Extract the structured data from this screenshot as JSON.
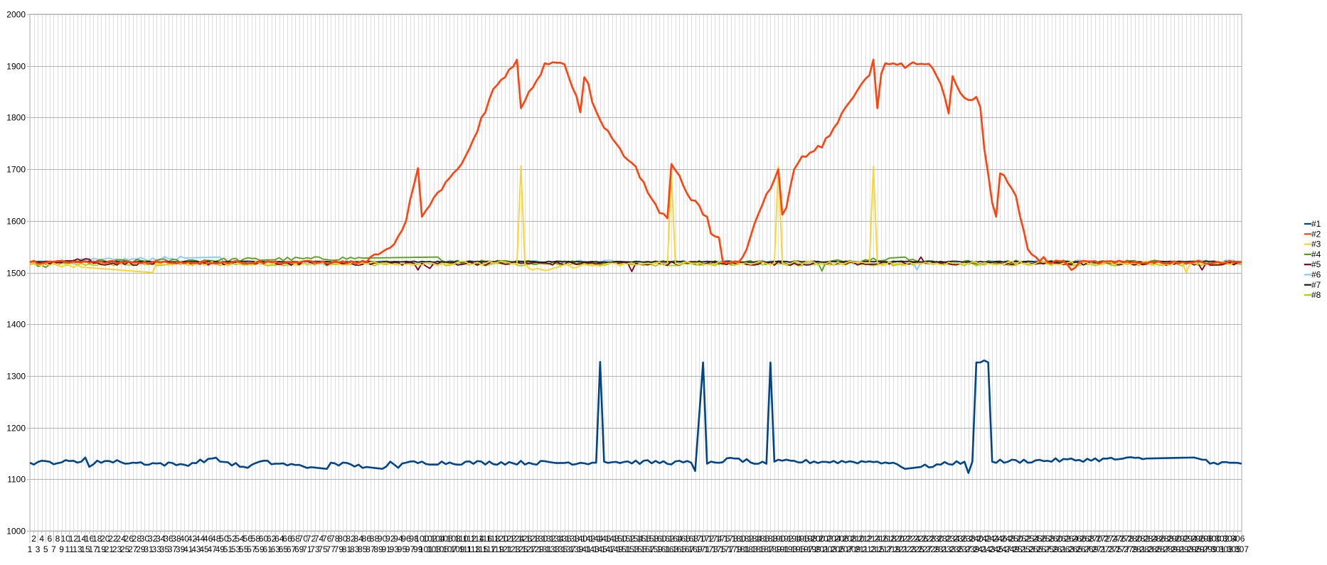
{
  "chart_data": {
    "type": "line",
    "title": "",
    "xlabel": "",
    "ylabel": "",
    "x_range": [
      1,
      307
    ],
    "ylim": [
      1000,
      2000
    ],
    "y_ticks": [
      "1000",
      "1100",
      "1200",
      "1300",
      "1400",
      "1500",
      "1600",
      "1700",
      "1800",
      "1900",
      "2000"
    ],
    "grid": true,
    "legend": "right",
    "series": [
      {
        "name": "#1",
        "color": "#004586",
        "baseline": 1132,
        "noise": 4,
        "points": [
          [
            1,
            1132
          ],
          [
            14,
            1134
          ],
          [
            15,
            1142
          ],
          [
            16,
            1124
          ],
          [
            18,
            1136
          ],
          [
            24,
            1133
          ],
          [
            40,
            1128
          ],
          [
            47,
            1140
          ],
          [
            56,
            1122
          ],
          [
            59,
            1134
          ],
          [
            76,
            1120
          ],
          [
            77,
            1132
          ],
          [
            90,
            1120
          ],
          [
            92,
            1134
          ],
          [
            94,
            1122
          ],
          [
            96,
            1132
          ],
          [
            143,
            1132
          ],
          [
            144,
            1132
          ],
          [
            145,
            1327
          ],
          [
            146,
            1134
          ],
          [
            168,
            1132
          ],
          [
            169,
            1116
          ],
          [
            171,
            1326
          ],
          [
            172,
            1130
          ],
          [
            179,
            1140
          ],
          [
            185,
            1130
          ],
          [
            187,
            1130
          ],
          [
            188,
            1326
          ],
          [
            189,
            1134
          ],
          [
            215,
            1134
          ],
          [
            219,
            1132
          ],
          [
            222,
            1120
          ],
          [
            237,
            1134
          ],
          [
            238,
            1112
          ],
          [
            239,
            1134
          ],
          [
            240,
            1326
          ],
          [
            241,
            1326
          ],
          [
            242,
            1330
          ],
          [
            243,
            1326
          ],
          [
            244,
            1134
          ],
          [
            295,
            1142
          ],
          [
            300,
            1132
          ],
          [
            307,
            1130
          ]
        ]
      },
      {
        "name": "#2",
        "color": "#ff420e",
        "baseline": 1520,
        "noise": 3,
        "points": [
          [
            1,
            1520
          ],
          [
            86,
            1520
          ],
          [
            87,
            1530
          ],
          [
            88,
            1535
          ],
          [
            89,
            1535
          ],
          [
            90,
            1540
          ],
          [
            91,
            1545
          ],
          [
            92,
            1548
          ],
          [
            93,
            1555
          ],
          [
            94,
            1570
          ],
          [
            95,
            1582
          ],
          [
            96,
            1600
          ],
          [
            97,
            1640
          ],
          [
            98,
            1670
          ],
          [
            99,
            1702
          ],
          [
            100,
            1608
          ],
          [
            101,
            1620
          ],
          [
            102,
            1630
          ],
          [
            103,
            1645
          ],
          [
            104,
            1655
          ],
          [
            105,
            1660
          ],
          [
            106,
            1675
          ],
          [
            107,
            1683
          ],
          [
            108,
            1693
          ],
          [
            109,
            1700
          ],
          [
            110,
            1710
          ],
          [
            111,
            1725
          ],
          [
            112,
            1740
          ],
          [
            113,
            1758
          ],
          [
            114,
            1773
          ],
          [
            115,
            1800
          ],
          [
            116,
            1810
          ],
          [
            117,
            1835
          ],
          [
            118,
            1855
          ],
          [
            119,
            1863
          ],
          [
            120,
            1873
          ],
          [
            121,
            1878
          ],
          [
            122,
            1893
          ],
          [
            123,
            1898
          ],
          [
            124,
            1912
          ],
          [
            125,
            1818
          ],
          [
            126,
            1832
          ],
          [
            127,
            1850
          ],
          [
            128,
            1858
          ],
          [
            129,
            1872
          ],
          [
            130,
            1883
          ],
          [
            131,
            1905
          ],
          [
            132,
            1903
          ],
          [
            133,
            1907
          ],
          [
            134,
            1906
          ],
          [
            135,
            1906
          ],
          [
            136,
            1903
          ],
          [
            137,
            1880
          ],
          [
            138,
            1858
          ],
          [
            139,
            1842
          ],
          [
            140,
            1810
          ],
          [
            141,
            1878
          ],
          [
            142,
            1866
          ],
          [
            143,
            1830
          ],
          [
            144,
            1812
          ],
          [
            145,
            1795
          ],
          [
            146,
            1780
          ],
          [
            147,
            1774
          ],
          [
            148,
            1760
          ],
          [
            149,
            1750
          ],
          [
            150,
            1740
          ],
          [
            151,
            1725
          ],
          [
            152,
            1718
          ],
          [
            153,
            1712
          ],
          [
            154,
            1705
          ],
          [
            155,
            1684
          ],
          [
            156,
            1675
          ],
          [
            157,
            1655
          ],
          [
            158,
            1643
          ],
          [
            159,
            1632
          ],
          [
            160,
            1615
          ],
          [
            161,
            1614
          ],
          [
            162,
            1605
          ],
          [
            163,
            1710
          ],
          [
            164,
            1698
          ],
          [
            165,
            1688
          ],
          [
            166,
            1668
          ],
          [
            167,
            1652
          ],
          [
            168,
            1640
          ],
          [
            169,
            1639
          ],
          [
            170,
            1630
          ],
          [
            171,
            1612
          ],
          [
            172,
            1608
          ],
          [
            173,
            1575
          ],
          [
            174,
            1570
          ],
          [
            175,
            1568
          ],
          [
            176,
            1520
          ],
          [
            177,
            1520
          ],
          [
            178,
            1518
          ],
          [
            179,
            1522
          ],
          [
            180,
            1520
          ],
          [
            181,
            1530
          ],
          [
            182,
            1545
          ],
          [
            183,
            1570
          ],
          [
            184,
            1595
          ],
          [
            185,
            1614
          ],
          [
            186,
            1632
          ],
          [
            187,
            1652
          ],
          [
            188,
            1662
          ],
          [
            189,
            1680
          ],
          [
            190,
            1700
          ],
          [
            191,
            1612
          ],
          [
            192,
            1625
          ],
          [
            193,
            1665
          ],
          [
            194,
            1700
          ],
          [
            195,
            1712
          ],
          [
            196,
            1725
          ],
          [
            197,
            1724
          ],
          [
            198,
            1732
          ],
          [
            199,
            1735
          ],
          [
            200,
            1745
          ],
          [
            201,
            1742
          ],
          [
            202,
            1760
          ],
          [
            203,
            1765
          ],
          [
            204,
            1780
          ],
          [
            205,
            1790
          ],
          [
            206,
            1808
          ],
          [
            207,
            1820
          ],
          [
            208,
            1830
          ],
          [
            209,
            1840
          ],
          [
            210,
            1853
          ],
          [
            211,
            1865
          ],
          [
            212,
            1875
          ],
          [
            213,
            1882
          ],
          [
            214,
            1912
          ],
          [
            215,
            1818
          ],
          [
            216,
            1885
          ],
          [
            217,
            1905
          ],
          [
            218,
            1903
          ],
          [
            219,
            1905
          ],
          [
            220,
            1902
          ],
          [
            221,
            1905
          ],
          [
            222,
            1896
          ],
          [
            223,
            1902
          ],
          [
            224,
            1907
          ],
          [
            225,
            1903
          ],
          [
            226,
            1904
          ],
          [
            227,
            1903
          ],
          [
            228,
            1904
          ],
          [
            229,
            1895
          ],
          [
            230,
            1880
          ],
          [
            231,
            1865
          ],
          [
            232,
            1840
          ],
          [
            233,
            1808
          ],
          [
            234,
            1880
          ],
          [
            235,
            1862
          ],
          [
            236,
            1847
          ],
          [
            237,
            1838
          ],
          [
            238,
            1834
          ],
          [
            239,
            1834
          ],
          [
            240,
            1840
          ],
          [
            241,
            1820
          ],
          [
            242,
            1740
          ],
          [
            243,
            1690
          ],
          [
            244,
            1635
          ],
          [
            245,
            1608
          ],
          [
            246,
            1692
          ],
          [
            247,
            1688
          ],
          [
            248,
            1673
          ],
          [
            249,
            1662
          ],
          [
            250,
            1648
          ],
          [
            251,
            1610
          ],
          [
            252,
            1580
          ],
          [
            253,
            1545
          ],
          [
            254,
            1535
          ],
          [
            255,
            1530
          ],
          [
            256,
            1522
          ],
          [
            257,
            1530
          ],
          [
            258,
            1520
          ],
          [
            262,
            1522
          ],
          [
            264,
            1505
          ],
          [
            266,
            1520
          ],
          [
            307,
            1520
          ]
        ]
      },
      {
        "name": "#3",
        "color": "#ffd320",
        "baseline": 1518,
        "noise": 4,
        "points": [
          [
            1,
            1518
          ],
          [
            32,
            1500
          ],
          [
            33,
            1518
          ],
          [
            124,
            1518
          ],
          [
            125,
            1706
          ],
          [
            126,
            1518
          ],
          [
            127,
            1508
          ],
          [
            128,
            1505
          ],
          [
            129,
            1508
          ],
          [
            130,
            1506
          ],
          [
            131,
            1504
          ],
          [
            132,
            1505
          ],
          [
            133,
            1508
          ],
          [
            134,
            1510
          ],
          [
            135,
            1512
          ],
          [
            162,
            1518
          ],
          [
            163,
            1692
          ],
          [
            164,
            1518
          ],
          [
            189,
            1518
          ],
          [
            190,
            1706
          ],
          [
            191,
            1518
          ],
          [
            213,
            1518
          ],
          [
            214,
            1705
          ],
          [
            215,
            1518
          ],
          [
            292,
            1518
          ],
          [
            293,
            1500
          ],
          [
            294,
            1518
          ],
          [
            307,
            1518
          ]
        ]
      },
      {
        "name": "#4",
        "color": "#579d1c",
        "baseline": 1520,
        "noise": 4,
        "points": [
          [
            1,
            1520
          ],
          [
            5,
            1510
          ],
          [
            8,
            1520
          ],
          [
            104,
            1530
          ],
          [
            106,
            1520
          ],
          [
            200,
            1520
          ],
          [
            201,
            1503
          ],
          [
            202,
            1520
          ],
          [
            222,
            1530
          ],
          [
            226,
            1520
          ],
          [
            307,
            1520
          ]
        ]
      },
      {
        "name": "#5",
        "color": "#7e0021",
        "baseline": 1518,
        "noise": 4,
        "points": [
          [
            1,
            1518
          ],
          [
            16,
            1526
          ],
          [
            17,
            1518
          ],
          [
            98,
            1518
          ],
          [
            99,
            1505
          ],
          [
            100,
            1518
          ],
          [
            102,
            1508
          ],
          [
            103,
            1518
          ],
          [
            152,
            1518
          ],
          [
            153,
            1502
          ],
          [
            154,
            1518
          ],
          [
            225,
            1518
          ],
          [
            226,
            1530
          ],
          [
            227,
            1518
          ],
          [
            296,
            1518
          ],
          [
            297,
            1505
          ],
          [
            298,
            1518
          ],
          [
            307,
            1518
          ]
        ]
      },
      {
        "name": "#6",
        "color": "#83caff",
        "baseline": 1520,
        "noise": 4,
        "points": [
          [
            1,
            1520
          ],
          [
            49,
            1530
          ],
          [
            50,
            1520
          ],
          [
            224,
            1520
          ],
          [
            225,
            1505
          ],
          [
            226,
            1520
          ],
          [
            307,
            1520
          ]
        ]
      },
      {
        "name": "#7",
        "color": "#1f1f1f",
        "baseline": 1521,
        "noise": 1,
        "points": [
          [
            1,
            1521
          ],
          [
            307,
            1521
          ]
        ]
      },
      {
        "name": "#8",
        "color": "#aecf00",
        "baseline": 1516,
        "noise": 3,
        "points": [
          [
            1,
            1516
          ],
          [
            307,
            1516
          ]
        ]
      }
    ]
  }
}
